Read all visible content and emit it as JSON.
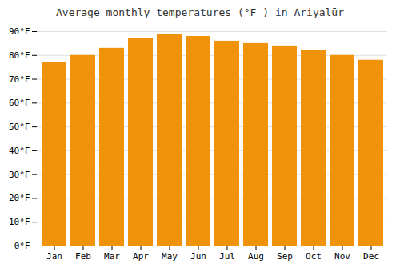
{
  "chart_data": {
    "type": "bar",
    "title": "Average monthly temperatures (°F ) in Ariyalūr",
    "categories": [
      "Jan",
      "Feb",
      "Mar",
      "Apr",
      "May",
      "Jun",
      "Jul",
      "Aug",
      "Sep",
      "Oct",
      "Nov",
      "Dec"
    ],
    "values": [
      77,
      80,
      83,
      87,
      89,
      88,
      86,
      85,
      84,
      82,
      80,
      78
    ],
    "color": "#F0920A",
    "ylim": [
      0,
      90
    ],
    "yticks": [
      {
        "value": 0,
        "label": "0°F"
      },
      {
        "value": 10,
        "label": "10°F"
      },
      {
        "value": 20,
        "label": "20°F"
      },
      {
        "value": 30,
        "label": "30°F"
      },
      {
        "value": 40,
        "label": "40°F"
      },
      {
        "value": 50,
        "label": "50°F"
      },
      {
        "value": 60,
        "label": "60°F"
      },
      {
        "value": 70,
        "label": "70°F"
      },
      {
        "value": 80,
        "label": "80°F"
      },
      {
        "value": 90,
        "label": "90°F"
      }
    ],
    "grid": true
  }
}
